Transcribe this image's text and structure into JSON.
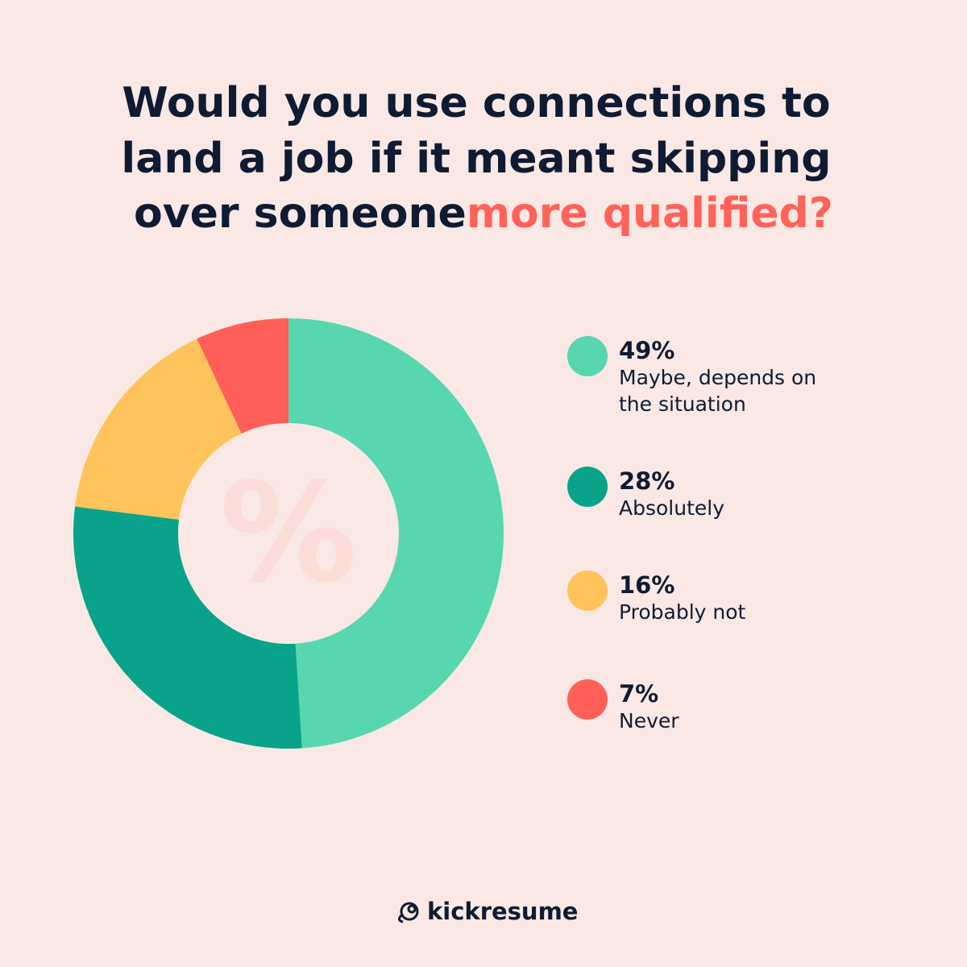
{
  "chart_data": {
    "type": "donut",
    "title": [
      "Would you use connections to",
      "land a job if it meant skipping",
      "over someone"
    ],
    "title_highlight": "more qualified?",
    "center_label": "%",
    "categories": [
      "Maybe, depends on the situation",
      "Absolutely",
      "Probably not",
      "Never"
    ],
    "values": [
      49,
      28,
      16,
      7
    ],
    "value_labels": [
      "49%",
      "28%",
      "16%",
      "7%"
    ],
    "colors": [
      "#57d6af",
      "#08a38a",
      "#fec35b",
      "#ff5f58"
    ],
    "brand": "kickresume"
  }
}
